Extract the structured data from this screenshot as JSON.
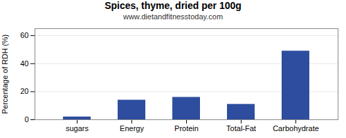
{
  "chart_data": {
    "type": "bar",
    "title": "Spices, thyme, dried per 100g",
    "subtitle": "www.dietandfitnesstoday.com",
    "categories": [
      "sugars",
      "Energy",
      "Protein",
      "Total-Fat",
      "Carbohydrate"
    ],
    "values": [
      2,
      14,
      16,
      11,
      49
    ],
    "color": "#2e4d9e",
    "ylabel": "Percentage of RDH (%)",
    "ylim": [
      0,
      65
    ],
    "yticks": [
      0,
      20,
      40,
      60
    ],
    "grid": true
  }
}
